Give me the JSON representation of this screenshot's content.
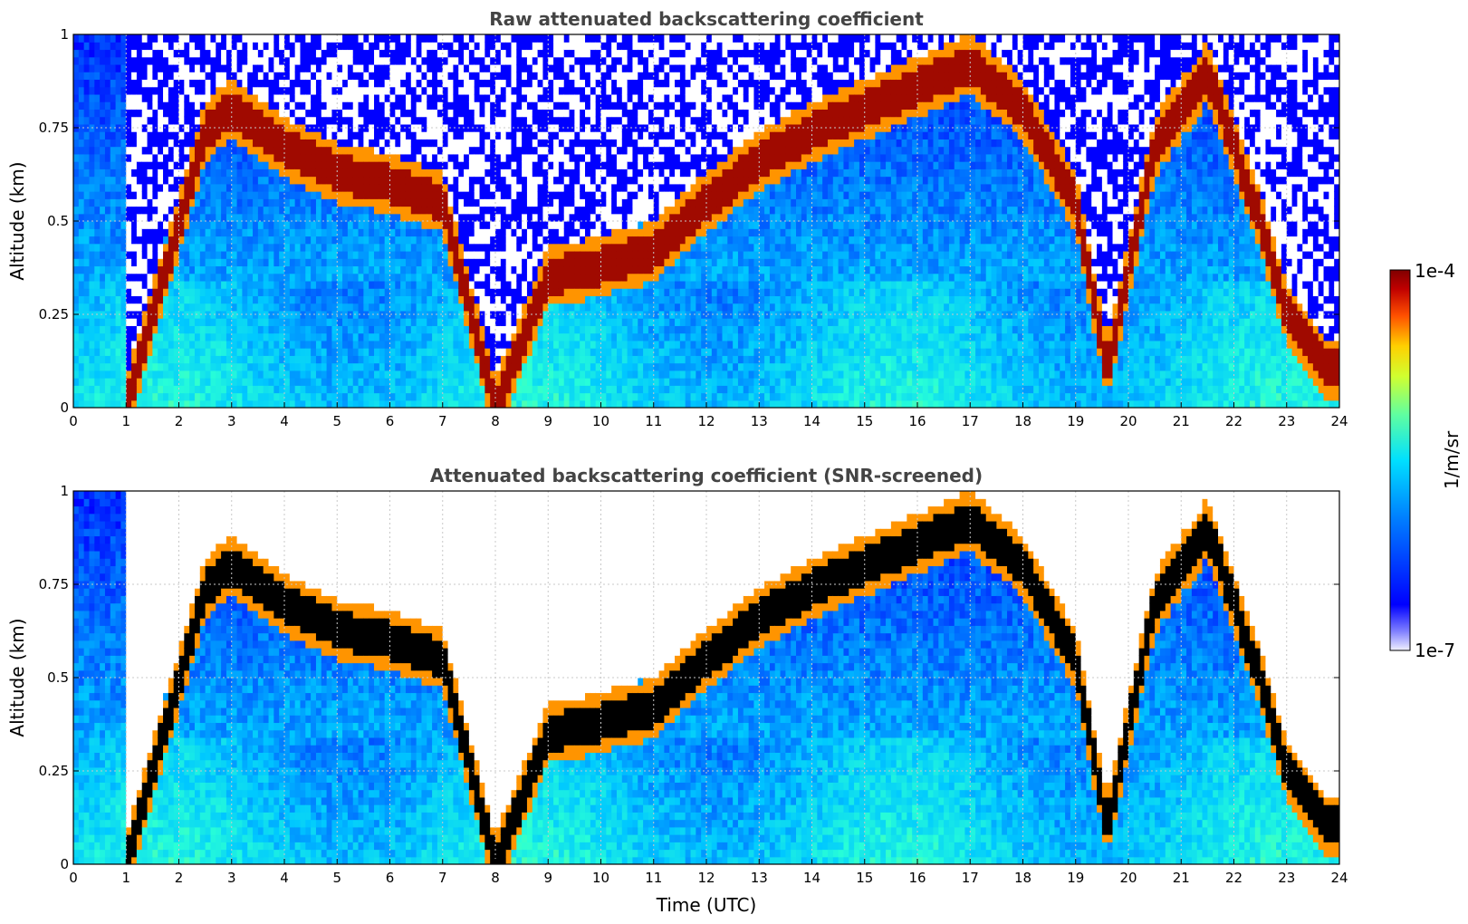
{
  "chart_data": [
    {
      "type": "heatmap",
      "title": "Raw attenuated backscattering coefficient",
      "xlabel": "",
      "ylabel": "Altitude (km)",
      "xlim": [
        0,
        24
      ],
      "ylim": [
        0,
        1
      ],
      "x_ticks": [
        "0",
        "1",
        "2",
        "3",
        "4",
        "5",
        "6",
        "7",
        "8",
        "9",
        "10",
        "11",
        "12",
        "13",
        "14",
        "15",
        "16",
        "17",
        "18",
        "19",
        "20",
        "21",
        "22",
        "23",
        "24"
      ],
      "y_ticks": [
        "0",
        "0.25",
        "0.5",
        "0.75",
        "1"
      ],
      "y_tick_values": [
        0,
        0.25,
        0.5,
        0.75,
        1
      ],
      "grid": true,
      "screened": false,
      "cloud_layer_km": [
        [
          0.0,
          0.0
        ],
        [
          1.0,
          0.0
        ],
        [
          2.5,
          0.74
        ],
        [
          3.0,
          0.8
        ],
        [
          4.0,
          0.7
        ],
        [
          5.0,
          0.63
        ],
        [
          6.0,
          0.6
        ],
        [
          7.0,
          0.55
        ],
        [
          8.0,
          0.0
        ],
        [
          9.0,
          0.35
        ],
        [
          10.0,
          0.38
        ],
        [
          11.0,
          0.42
        ],
        [
          12.0,
          0.55
        ],
        [
          13.0,
          0.66
        ],
        [
          14.0,
          0.74
        ],
        [
          15.0,
          0.8
        ],
        [
          16.0,
          0.86
        ],
        [
          17.0,
          0.92
        ],
        [
          18.0,
          0.8
        ],
        [
          19.0,
          0.55
        ],
        [
          19.6,
          0.1
        ],
        [
          20.5,
          0.7
        ],
        [
          21.5,
          0.9
        ],
        [
          22.5,
          0.5
        ],
        [
          23.0,
          0.25
        ],
        [
          23.8,
          0.1
        ]
      ]
    },
    {
      "type": "heatmap",
      "title": "Attenuated backscattering coefficient (SNR-screened)",
      "xlabel": "Time (UTC)",
      "ylabel": "Altitude (km)",
      "xlim": [
        0,
        24
      ],
      "ylim": [
        0,
        1
      ],
      "x_ticks": [
        "0",
        "1",
        "2",
        "3",
        "4",
        "5",
        "6",
        "7",
        "8",
        "9",
        "10",
        "11",
        "12",
        "13",
        "14",
        "15",
        "16",
        "17",
        "18",
        "19",
        "20",
        "21",
        "22",
        "23",
        "24"
      ],
      "y_ticks": [
        "0",
        "0.25",
        "0.5",
        "0.75",
        "1"
      ],
      "y_tick_values": [
        0,
        0.25,
        0.5,
        0.75,
        1
      ],
      "grid": true,
      "screened": true,
      "cloud_layer_km": [
        [
          0.0,
          0.0
        ],
        [
          1.0,
          0.0
        ],
        [
          2.5,
          0.74
        ],
        [
          3.0,
          0.8
        ],
        [
          4.0,
          0.7
        ],
        [
          5.0,
          0.63
        ],
        [
          6.0,
          0.6
        ],
        [
          7.0,
          0.55
        ],
        [
          8.0,
          0.0
        ],
        [
          9.0,
          0.35
        ],
        [
          10.0,
          0.38
        ],
        [
          11.0,
          0.42
        ],
        [
          12.0,
          0.55
        ],
        [
          13.0,
          0.66
        ],
        [
          14.0,
          0.74
        ],
        [
          15.0,
          0.8
        ],
        [
          16.0,
          0.86
        ],
        [
          17.0,
          0.92
        ],
        [
          18.0,
          0.8
        ],
        [
          19.0,
          0.55
        ],
        [
          19.6,
          0.1
        ],
        [
          20.5,
          0.7
        ],
        [
          21.5,
          0.9
        ],
        [
          22.5,
          0.5
        ],
        [
          23.0,
          0.25
        ],
        [
          23.8,
          0.1
        ]
      ]
    }
  ],
  "colorbar": {
    "label": "1/m/sr",
    "max_label": "1e-4",
    "min_label": "1e-7",
    "scale": "log",
    "colormap": "jet",
    "range": [
      1e-07,
      0.0001
    ]
  },
  "colors": {
    "title": "#444444",
    "grid": "#c8c8c8",
    "screened_cloud": "#000000"
  }
}
